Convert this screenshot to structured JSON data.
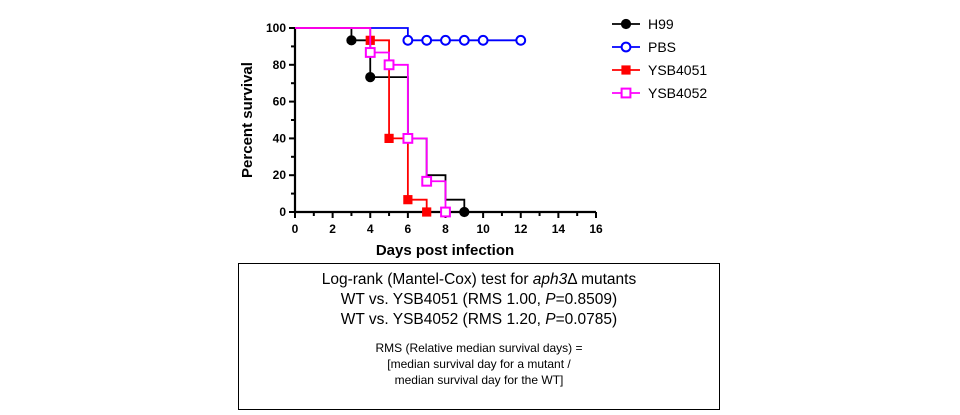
{
  "chart_data": {
    "type": "line",
    "step": true,
    "title": "",
    "xlabel": "Days post infection",
    "ylabel": "Percent survival",
    "xlim": [
      0,
      16
    ],
    "ylim": [
      0,
      100
    ],
    "xticks": [
      0,
      2,
      4,
      6,
      8,
      10,
      12,
      14,
      16
    ],
    "yticks": [
      0,
      20,
      40,
      60,
      80,
      100
    ],
    "grid": false,
    "legend_position": "right",
    "series": [
      {
        "name": "H99",
        "color": "#000000",
        "marker": "filled-circle",
        "x": [
          0,
          3,
          4,
          5,
          6,
          7,
          8,
          9
        ],
        "y": [
          100,
          93.3,
          73.3,
          73.3,
          40,
          20,
          6.7,
          0
        ],
        "marked": [
          false,
          true,
          true,
          false,
          false,
          false,
          false,
          true
        ]
      },
      {
        "name": "PBS",
        "color": "#0000ff",
        "marker": "open-circle",
        "x": [
          0,
          6,
          7,
          8,
          9,
          10,
          12
        ],
        "y": [
          100,
          93.3,
          93.3,
          93.3,
          93.3,
          93.3,
          93.3
        ],
        "marked": [
          false,
          true,
          true,
          true,
          true,
          true,
          true
        ]
      },
      {
        "name": "YSB4051",
        "color": "#ff0000",
        "marker": "filled-square",
        "x": [
          0,
          4,
          5,
          6,
          7
        ],
        "y": [
          100,
          93.3,
          40,
          6.7,
          0
        ],
        "marked": [
          false,
          true,
          true,
          true,
          true
        ]
      },
      {
        "name": "YSB4052",
        "color": "#ff00ff",
        "marker": "open-square",
        "x": [
          0,
          4,
          5,
          6,
          7,
          8
        ],
        "y": [
          100,
          86.7,
          80,
          40,
          16.7,
          0
        ],
        "marked": [
          false,
          true,
          true,
          true,
          true,
          true
        ]
      }
    ]
  },
  "stats_box": {
    "line1_prefix": "Log-rank (Mantel-Cox) test for ",
    "line1_gene": "aph3",
    "line1_suffix": "Δ mutants",
    "line2_prefix": "WT vs. YSB4051 (RMS 1.00, ",
    "line2_p": "P",
    "line2_suffix": "=0.8509)",
    "line3_prefix": "WT vs. YSB4052 (RMS 1.20, ",
    "line3_p": "P",
    "line3_suffix": "=0.0785)",
    "note1": "RMS (Relative median survival days) =",
    "note2": "[median survival day for a mutant  /",
    "note3": "median survival day for the WT]"
  }
}
